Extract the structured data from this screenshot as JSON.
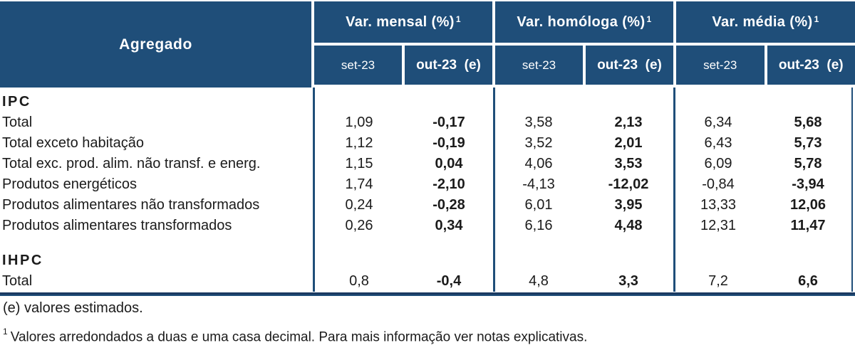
{
  "colors": {
    "header_blue": "#1f4e79",
    "rule_dark_navy": "#1a3a61",
    "body_text": "#1b1b1b",
    "header_text": "#ffffff"
  },
  "table": {
    "corner_label": "Agregado",
    "groups": [
      {
        "title": "Var. mensal (%)",
        "sup": "1",
        "col_set": "set-23",
        "col_out": "out-23  (e)"
      },
      {
        "title": "Var. homóloga (%)",
        "sup": "1",
        "col_set": "set-23",
        "col_out": "out-23  (e)"
      },
      {
        "title": "Var. média (%)",
        "sup": "1",
        "col_set": "set-23",
        "col_out": "out-23  (e)"
      }
    ],
    "rows": [
      {
        "type": "section",
        "label": "IPC"
      },
      {
        "type": "data",
        "label": "Total",
        "values": [
          "1,09",
          "-0,17",
          "3,58",
          "2,13",
          "6,34",
          "5,68"
        ]
      },
      {
        "type": "data",
        "label": "Total exceto habitação",
        "values": [
          "1,12",
          "-0,19",
          "3,52",
          "2,01",
          "6,43",
          "5,73"
        ]
      },
      {
        "type": "data",
        "label": "Total exc. prod. alim. não transf. e energ.",
        "values": [
          "1,15",
          "0,04",
          "4,06",
          "3,53",
          "6,09",
          "5,78"
        ]
      },
      {
        "type": "data",
        "label": "Produtos energéticos",
        "values": [
          "1,74",
          "-2,10",
          "-4,13",
          "-12,02",
          "-0,84",
          "-3,94"
        ]
      },
      {
        "type": "data",
        "label": "Produtos alimentares não transformados",
        "values": [
          "0,24",
          "-0,28",
          "6,01",
          "3,95",
          "13,33",
          "12,06"
        ]
      },
      {
        "type": "data",
        "label": "Produtos alimentares transformados",
        "values": [
          "0,26",
          "0,34",
          "6,16",
          "4,48",
          "12,31",
          "11,47"
        ]
      },
      {
        "type": "section",
        "label": "IHPC"
      },
      {
        "type": "data",
        "label": "Total",
        "values": [
          "0,8",
          "-0,4",
          "4,8",
          "3,3",
          "7,2",
          "6,6"
        ]
      }
    ]
  },
  "notes": {
    "estimated": "(e) valores estimados.",
    "footnote_sup": "1",
    "footnote": "Valores arredondados a duas e uma casa decimal. Para mais informação ver notas explicativas."
  }
}
